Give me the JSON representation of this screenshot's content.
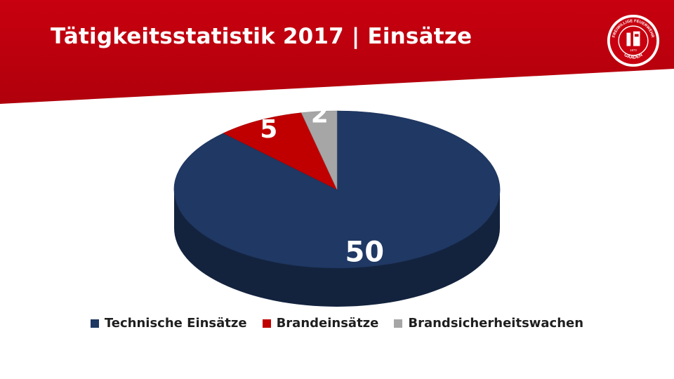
{
  "title": "Tätigkeitsstatistik 2017 | Einsätze",
  "colors": {
    "header": "#c8000f",
    "technical": "#1f3864",
    "fire": "#c00000",
    "watch": "#a6a6a6"
  },
  "logo": {
    "top_text": "FREIWILLIGE FEUERWEHR",
    "bottom_text": "GAADEN",
    "year": "1873"
  },
  "chart_data": {
    "type": "pie",
    "style": "3d",
    "categories": [
      "Technische Einsätze",
      "Brandeinsätze",
      "Brandsicherheitswachen"
    ],
    "values": [
      50,
      5,
      2
    ],
    "colors": [
      "#1f3864",
      "#c00000",
      "#a6a6a6"
    ],
    "legend_position": "bottom"
  }
}
